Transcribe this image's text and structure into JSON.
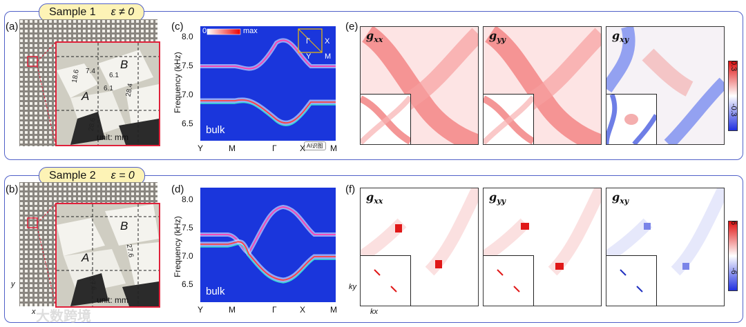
{
  "rows": [
    {
      "tag_label": "Sample 1",
      "tag_eps": "ε ≠ 0",
      "photo_label": "(a)",
      "band_label": "(c)",
      "metric_label": "(e)",
      "dims": [
        "18.6",
        "7.4",
        "6.1",
        "6.1",
        "28.4",
        "28.6"
      ],
      "region_a": "A",
      "region_b": "B",
      "unit": "unit: mm",
      "bulk": "bulk",
      "cbar_min": "0",
      "cbar_max": "max",
      "y_axis_label": "Frequency (kHz)",
      "y_ticks": [
        "8.0",
        "7.5",
        "7.0",
        "6.5"
      ],
      "x_ticks": [
        "Y",
        "M",
        "Γ",
        "X",
        "M"
      ],
      "bz_labels": [
        "Γ",
        "X",
        "Y",
        "M"
      ],
      "colorbar_top": "0.3",
      "colorbar_bottom": "-0.3",
      "panels": [
        "g",
        "g",
        "g"
      ],
      "panel_subs": [
        "xx",
        "yy",
        "xy"
      ]
    },
    {
      "tag_label": "Sample 2",
      "tag_eps": "ε = 0",
      "photo_label": "(b)",
      "band_label": "(d)",
      "metric_label": "(f)",
      "dims": [
        "27.6",
        "27.6"
      ],
      "region_a": "A",
      "region_b": "B",
      "unit": "unit: mm",
      "bulk": "bulk",
      "y_axis_label": "Frequency (kHz)",
      "y_ticks": [
        "8.0",
        "7.5",
        "7.0",
        "6.5"
      ],
      "x_ticks": [
        "Y",
        "M",
        "Γ",
        "X",
        "M"
      ],
      "colorbar_top": "6",
      "colorbar_bottom": "-6",
      "panels": [
        "g",
        "g",
        "g"
      ],
      "panel_subs": [
        "xx",
        "yy",
        "xy"
      ],
      "axis_y": "y",
      "axis_x": "x",
      "axis_ky": "ky",
      "axis_kx": "kx"
    }
  ],
  "watermark": "大数跨境",
  "ai_badge": "AI识图",
  "colors": {
    "frame": "#4f5fc8",
    "tag_bg": "#fdf3b6",
    "zoom_border": "#e0203a",
    "band_bg": "#1834d8"
  }
}
